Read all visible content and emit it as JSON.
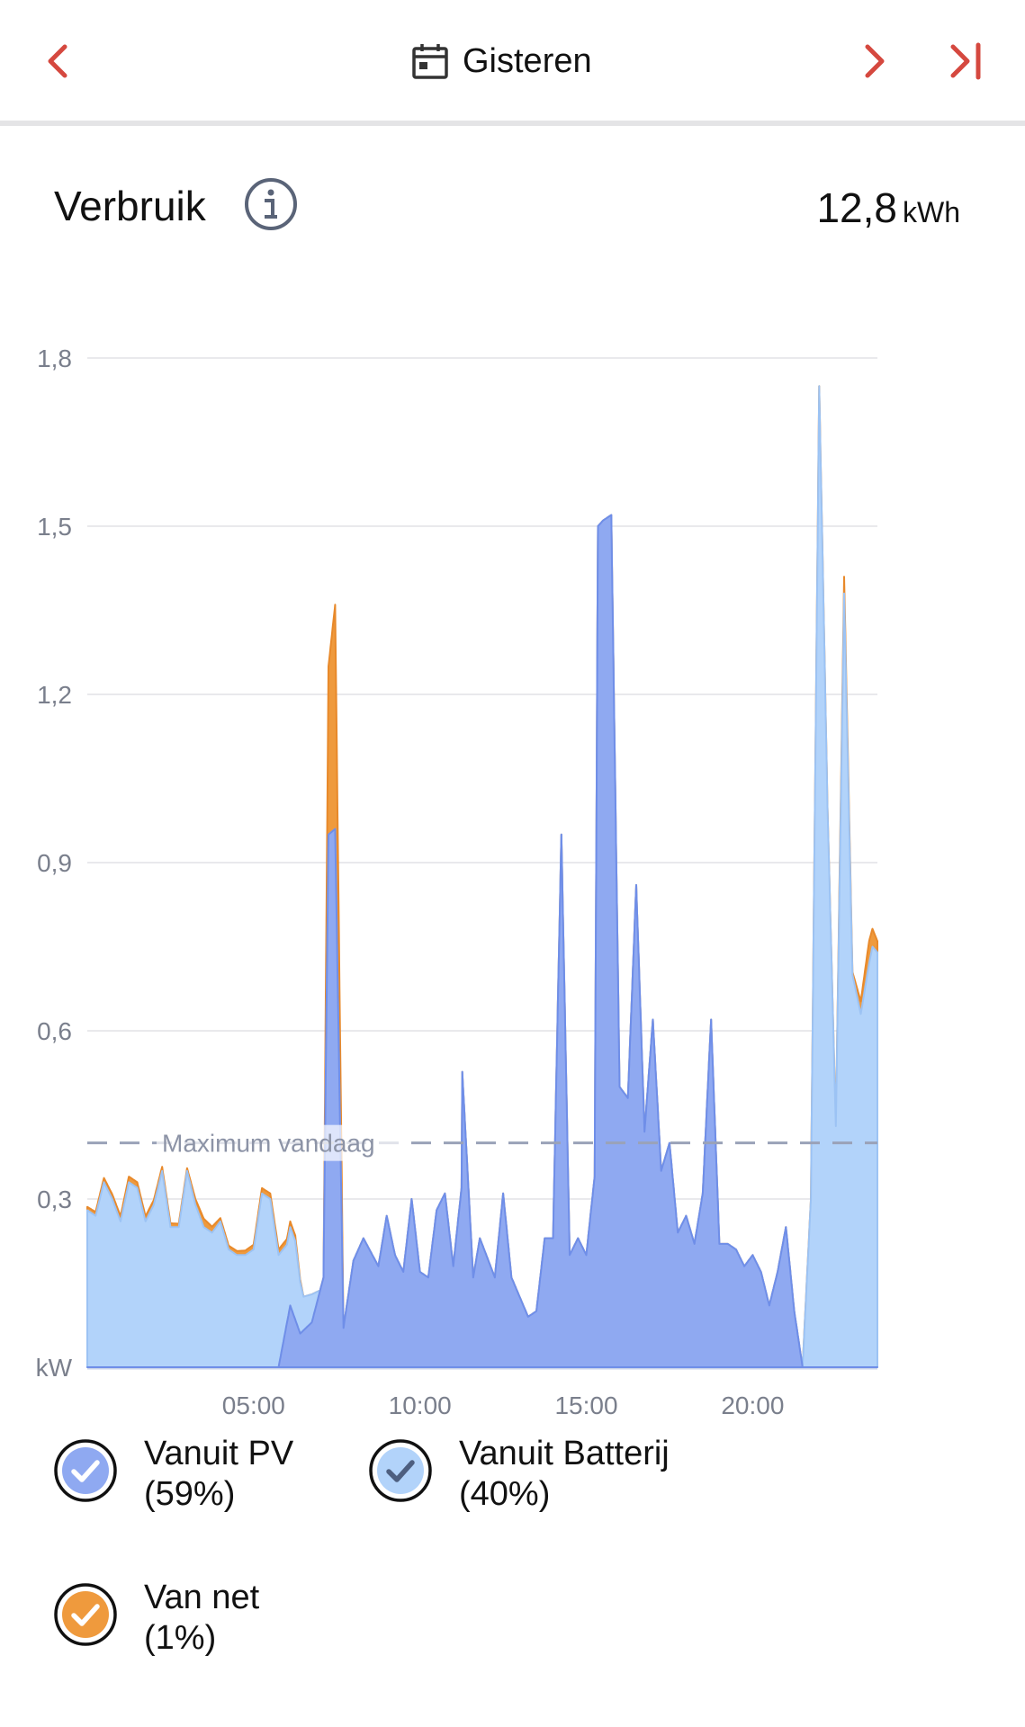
{
  "header": {
    "date_label": "Gisteren"
  },
  "section": {
    "title": "Verbruik",
    "total_value": "12,8",
    "total_unit": "kWh"
  },
  "colors": {
    "pv": "#8fa9f1",
    "battery": "#b2d3fa",
    "grid": "#ef9a3d",
    "accent": "#d5483f"
  },
  "icons": {
    "prev": "chevron-left-icon",
    "next": "chevron-right-icon",
    "last": "skip-to-end-icon",
    "calendar": "calendar-icon",
    "info": "info-icon",
    "check": "checkmark-icon"
  },
  "chart_data": {
    "type": "area",
    "stacked": true,
    "unit_label": "kW",
    "x_ticks": [
      "05:00",
      "10:00",
      "15:00",
      "20:00"
    ],
    "y_ticks": [
      "0,3",
      "0,6",
      "0,9",
      "1,2",
      "1,5",
      "1,8"
    ],
    "ylim": [
      0,
      1.8
    ],
    "xlim_hours": [
      0,
      23.75
    ],
    "grid": true,
    "reference_line": {
      "label": "Maximum vandaag",
      "value": 0.4
    },
    "series": [
      {
        "name": "Vanuit PV",
        "points": [
          [
            0,
            0
          ],
          [
            5.75,
            0
          ],
          [
            6.1,
            0.11
          ],
          [
            6.4,
            0.06
          ],
          [
            6.75,
            0.08
          ],
          [
            7.1,
            0.16
          ],
          [
            7.25,
            0.95
          ],
          [
            7.45,
            0.96
          ],
          [
            7.7,
            0.07
          ],
          [
            8.0,
            0.19
          ],
          [
            8.3,
            0.23
          ],
          [
            8.75,
            0.18
          ],
          [
            9.0,
            0.27
          ],
          [
            9.25,
            0.2
          ],
          [
            9.5,
            0.17
          ],
          [
            9.75,
            0.3
          ],
          [
            10.0,
            0.17
          ],
          [
            10.25,
            0.16
          ],
          [
            10.5,
            0.28
          ],
          [
            10.75,
            0.31
          ],
          [
            11.0,
            0.18
          ],
          [
            11.25,
            0.32
          ],
          [
            11.25,
            0.55
          ],
          [
            11.6,
            0.16
          ],
          [
            11.8,
            0.23
          ],
          [
            12.25,
            0.16
          ],
          [
            12.5,
            0.31
          ],
          [
            12.75,
            0.16
          ],
          [
            13.25,
            0.09
          ],
          [
            13.5,
            0.1
          ],
          [
            13.75,
            0.23
          ],
          [
            14.0,
            0.23
          ],
          [
            14.25,
            0.95
          ],
          [
            14.5,
            0.2
          ],
          [
            14.75,
            0.23
          ],
          [
            15.0,
            0.2
          ],
          [
            15.25,
            0.34
          ],
          [
            15.35,
            1.5
          ],
          [
            15.5,
            1.51
          ],
          [
            15.75,
            1.52
          ],
          [
            16.0,
            0.5
          ],
          [
            16.25,
            0.48
          ],
          [
            16.5,
            0.86
          ],
          [
            16.75,
            0.42
          ],
          [
            17.0,
            0.62
          ],
          [
            17.25,
            0.35
          ],
          [
            17.5,
            0.4
          ],
          [
            17.75,
            0.24
          ],
          [
            18.0,
            0.27
          ],
          [
            18.25,
            0.22
          ],
          [
            18.5,
            0.31
          ],
          [
            18.75,
            0.62
          ],
          [
            19.0,
            0.22
          ],
          [
            19.25,
            0.22
          ],
          [
            19.5,
            0.21
          ],
          [
            19.75,
            0.18
          ],
          [
            20.0,
            0.2
          ],
          [
            20.25,
            0.17
          ],
          [
            20.5,
            0.11
          ],
          [
            20.75,
            0.17
          ],
          [
            21.0,
            0.25
          ],
          [
            21.25,
            0.1
          ],
          [
            21.5,
            0
          ],
          [
            23.75,
            0
          ]
        ]
      },
      {
        "name": "Vanuit Batterij",
        "points": [
          [
            0,
            0.28
          ],
          [
            0.25,
            0.27
          ],
          [
            0.5,
            0.33
          ],
          [
            0.75,
            0.3
          ],
          [
            1.0,
            0.26
          ],
          [
            1.25,
            0.33
          ],
          [
            1.5,
            0.32
          ],
          [
            1.75,
            0.26
          ],
          [
            2.0,
            0.29
          ],
          [
            2.25,
            0.35
          ],
          [
            2.5,
            0.25
          ],
          [
            2.75,
            0.25
          ],
          [
            3.0,
            0.35
          ],
          [
            3.25,
            0.29
          ],
          [
            3.5,
            0.25
          ],
          [
            3.75,
            0.24
          ],
          [
            4.0,
            0.26
          ],
          [
            4.25,
            0.21
          ],
          [
            4.5,
            0.2
          ],
          [
            4.75,
            0.2
          ],
          [
            5.0,
            0.21
          ],
          [
            5.25,
            0.31
          ],
          [
            5.5,
            0.3
          ],
          [
            5.75,
            0.2
          ],
          [
            6.0,
            0.14
          ],
          [
            6.25,
            0.14
          ],
          [
            6.5,
            0.06
          ],
          [
            6.75,
            0.05
          ],
          [
            7.0,
            0
          ],
          [
            7.5,
            0
          ],
          [
            21.5,
            0
          ],
          [
            21.75,
            0.3
          ],
          [
            22.0,
            1.75
          ],
          [
            22.25,
            1.0
          ],
          [
            22.5,
            0.43
          ],
          [
            22.75,
            1.38
          ],
          [
            23.0,
            0.7
          ],
          [
            23.25,
            0.63
          ],
          [
            23.5,
            0.72
          ],
          [
            23.6,
            0.75
          ],
          [
            23.75,
            0.74
          ]
        ]
      },
      {
        "name": "Van net",
        "points": [
          [
            0,
            0.006
          ],
          [
            1.25,
            0.01
          ],
          [
            1.5,
            0.01
          ],
          [
            3.0,
            0.005
          ],
          [
            3.5,
            0.015
          ],
          [
            4.0,
            0.006
          ],
          [
            5.5,
            0.01
          ],
          [
            6.25,
            0.01
          ],
          [
            6.5,
            0
          ],
          [
            7.1,
            0
          ],
          [
            7.25,
            0.3
          ],
          [
            7.45,
            0.4
          ],
          [
            7.7,
            0
          ],
          [
            21.5,
            0
          ],
          [
            22.5,
            0
          ],
          [
            22.75,
            0.03
          ],
          [
            23.0,
            0.005
          ],
          [
            23.5,
            0.04
          ],
          [
            23.75,
            0.02
          ]
        ]
      }
    ]
  },
  "legend": [
    {
      "label": "Vanuit PV",
      "percent": "(59%)"
    },
    {
      "label": "Vanuit Batterij",
      "percent": "(40%)"
    },
    {
      "label": "Van net",
      "percent": "(1%)"
    }
  ]
}
